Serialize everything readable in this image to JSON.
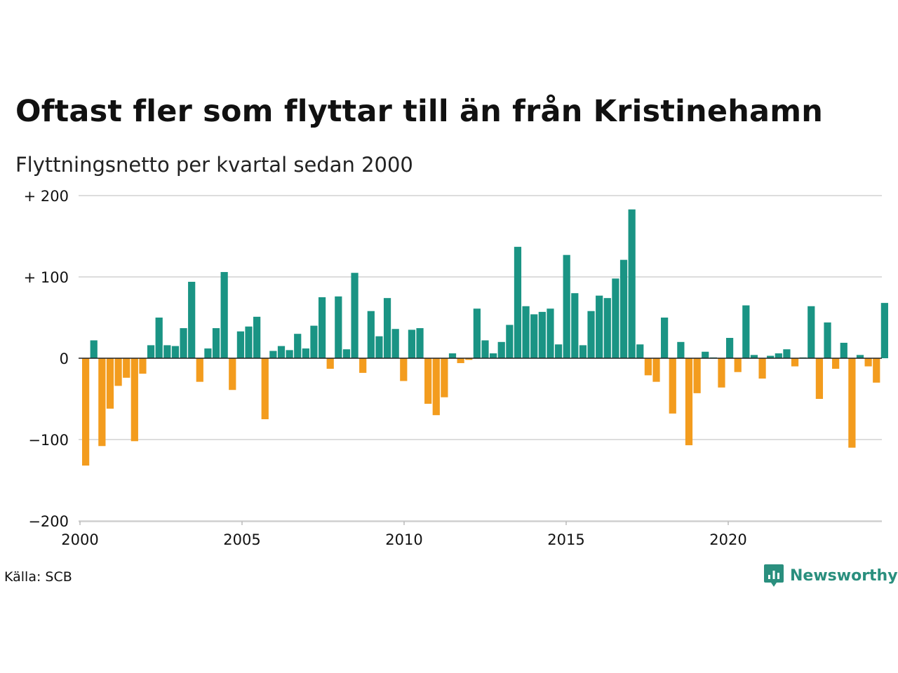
{
  "title": "Oftast fler som flyttar till än från Kristinehamn",
  "subtitle": "Flyttningsnetto per kvartal sedan 2000",
  "source": "Källa: SCB",
  "brand": "Newsworthy",
  "colors": {
    "positive": "#1a9484",
    "negative": "#f39c1e",
    "grid": "#dddddd",
    "brand": "#2a8f7e"
  },
  "chart_data": {
    "type": "bar",
    "title": "Oftast fler som flyttar till än från Kristinehamn",
    "subtitle": "Flyttningsnetto per kvartal sedan 2000",
    "ylim": [
      -200,
      200
    ],
    "yticks": [
      200,
      100,
      0,
      -100,
      -200
    ],
    "ytick_labels": [
      "+ 200",
      "+ 100",
      "0",
      "−100",
      "−200"
    ],
    "xtick_labels": [
      "2000",
      "2005",
      "2010",
      "2015",
      "2020"
    ],
    "x_start_year": 2000,
    "x_end_year": 2024.75,
    "grid": true,
    "values": [
      -132,
      22,
      -108,
      -62,
      -34,
      -24,
      -102,
      -19,
      16,
      50,
      16,
      15,
      37,
      94,
      -29,
      12,
      37,
      106,
      -39,
      33,
      39,
      51,
      -75,
      9,
      15,
      10,
      30,
      12,
      40,
      75,
      -13,
      76,
      11,
      105,
      -18,
      58,
      27,
      74,
      36,
      -28,
      35,
      37,
      -56,
      -70,
      -48,
      6,
      -6,
      -2,
      61,
      22,
      6,
      20,
      41,
      137,
      64,
      54,
      57,
      61,
      17,
      127,
      80,
      16,
      58,
      77,
      74,
      98,
      121,
      183,
      17,
      -21,
      -29,
      50,
      -68,
      20,
      -107,
      -43,
      8,
      1,
      -36,
      25,
      -17,
      65,
      4,
      -25,
      3,
      6,
      11,
      -10,
      1,
      64,
      -50,
      44,
      -13,
      19,
      -110,
      4,
      -10,
      -30,
      68
    ]
  }
}
